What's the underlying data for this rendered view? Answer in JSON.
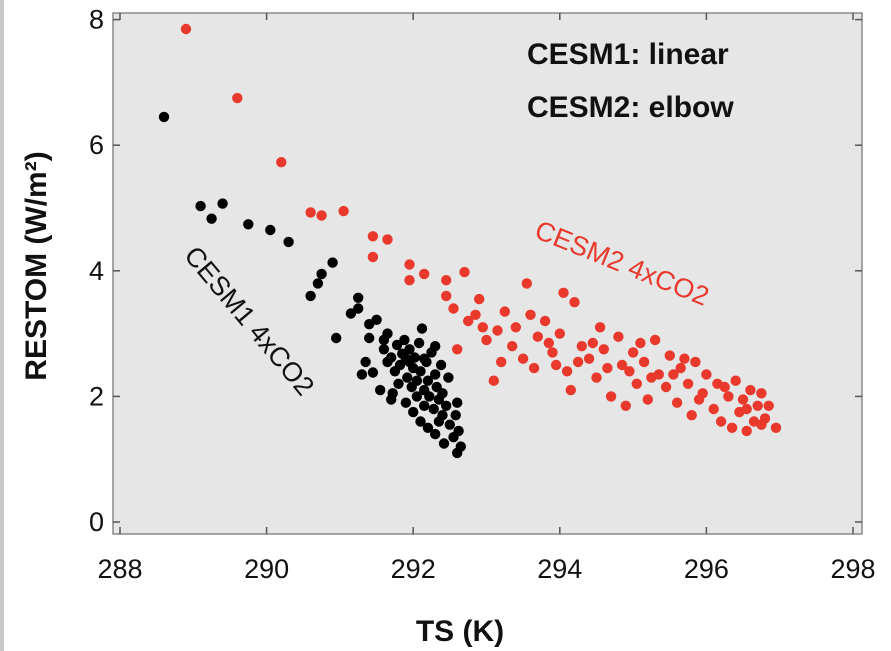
{
  "chart_data": {
    "type": "scatter",
    "title": "",
    "xlabel": "TS (K)",
    "ylabel": "RESTOM (W/m²)",
    "xlim": [
      288,
      298
    ],
    "ylim": [
      0,
      8.2
    ],
    "xticks": [
      288,
      290,
      292,
      294,
      296,
      298
    ],
    "yticks": [
      0,
      2,
      4,
      6,
      8
    ],
    "grid": false,
    "annotations": [
      "CESM1: linear",
      "CESM2: elbow"
    ],
    "series": [
      {
        "name": "CESM1 4xCO2",
        "color": "#000000",
        "points": [
          [
            288.6,
            6.45
          ],
          [
            289.1,
            5.03
          ],
          [
            289.25,
            4.83
          ],
          [
            289.4,
            5.07
          ],
          [
            289.75,
            4.74
          ],
          [
            290.05,
            4.65
          ],
          [
            290.3,
            4.46
          ],
          [
            290.6,
            3.6
          ],
          [
            290.7,
            3.8
          ],
          [
            290.75,
            3.95
          ],
          [
            290.9,
            4.13
          ],
          [
            290.95,
            2.93
          ],
          [
            291.15,
            3.32
          ],
          [
            291.25,
            3.4
          ],
          [
            291.25,
            3.57
          ],
          [
            291.3,
            2.35
          ],
          [
            291.4,
            2.93
          ],
          [
            291.4,
            3.15
          ],
          [
            291.45,
            2.38
          ],
          [
            291.5,
            3.22
          ],
          [
            291.6,
            2.75
          ],
          [
            291.6,
            2.9
          ],
          [
            291.65,
            2.55
          ],
          [
            291.65,
            3.0
          ],
          [
            291.7,
            2.62
          ],
          [
            291.72,
            2.05
          ],
          [
            291.75,
            2.4
          ],
          [
            291.78,
            2.82
          ],
          [
            291.8,
            2.2
          ],
          [
            291.82,
            2.5
          ],
          [
            291.85,
            2.68
          ],
          [
            291.88,
            2.9
          ],
          [
            291.9,
            1.9
          ],
          [
            291.92,
            2.3
          ],
          [
            291.95,
            2.55
          ],
          [
            291.95,
            2.75
          ],
          [
            291.98,
            2.15
          ],
          [
            292.0,
            2.45
          ],
          [
            292.0,
            1.75
          ],
          [
            292.02,
            2.62
          ],
          [
            292.05,
            2.25
          ],
          [
            292.05,
            2.0
          ],
          [
            292.08,
            2.85
          ],
          [
            292.1,
            1.6
          ],
          [
            292.1,
            2.4
          ],
          [
            292.12,
            3.08
          ],
          [
            292.15,
            2.1
          ],
          [
            292.15,
            1.85
          ],
          [
            292.18,
            2.55
          ],
          [
            292.2,
            2.25
          ],
          [
            292.2,
            1.5
          ],
          [
            292.22,
            2.0
          ],
          [
            292.25,
            2.7
          ],
          [
            292.28,
            1.8
          ],
          [
            292.3,
            2.35
          ],
          [
            292.3,
            1.4
          ],
          [
            292.32,
            2.15
          ],
          [
            292.35,
            1.95
          ],
          [
            292.38,
            2.5
          ],
          [
            292.4,
            1.7
          ],
          [
            292.4,
            2.05
          ],
          [
            292.42,
            1.25
          ],
          [
            292.45,
            1.85
          ],
          [
            292.48,
            2.3
          ],
          [
            292.5,
            1.55
          ],
          [
            292.55,
            1.35
          ],
          [
            292.58,
            1.7
          ],
          [
            292.6,
            1.1
          ],
          [
            292.6,
            1.9
          ],
          [
            292.62,
            1.45
          ],
          [
            292.65,
            1.2
          ],
          [
            291.35,
            2.55
          ],
          [
            291.55,
            2.1
          ],
          [
            291.7,
            1.95
          ],
          [
            291.9,
            2.6
          ],
          [
            292.15,
            2.6
          ],
          [
            292.3,
            2.8
          ],
          [
            292.35,
            1.6
          ]
        ]
      },
      {
        "name": "CESM2 4xCO2",
        "color": "#e8392c",
        "points": [
          [
            288.9,
            7.85
          ],
          [
            289.6,
            6.75
          ],
          [
            290.2,
            5.73
          ],
          [
            290.6,
            4.93
          ],
          [
            290.75,
            4.88
          ],
          [
            291.05,
            4.95
          ],
          [
            291.45,
            4.55
          ],
          [
            291.65,
            4.5
          ],
          [
            291.45,
            4.22
          ],
          [
            291.95,
            4.1
          ],
          [
            291.95,
            3.85
          ],
          [
            292.15,
            3.95
          ],
          [
            292.45,
            3.6
          ],
          [
            292.45,
            3.85
          ],
          [
            292.7,
            3.98
          ],
          [
            292.55,
            3.4
          ],
          [
            292.75,
            3.2
          ],
          [
            292.6,
            2.75
          ],
          [
            292.85,
            3.3
          ],
          [
            292.9,
            3.55
          ],
          [
            292.95,
            3.1
          ],
          [
            293.0,
            2.9
          ],
          [
            293.1,
            2.25
          ],
          [
            293.15,
            3.05
          ],
          [
            293.25,
            3.35
          ],
          [
            293.35,
            2.8
          ],
          [
            293.4,
            3.1
          ],
          [
            293.5,
            2.6
          ],
          [
            293.55,
            3.8
          ],
          [
            293.6,
            3.3
          ],
          [
            293.7,
            2.95
          ],
          [
            293.8,
            3.2
          ],
          [
            293.9,
            2.7
          ],
          [
            294.0,
            3.0
          ],
          [
            294.05,
            3.65
          ],
          [
            294.1,
            2.4
          ],
          [
            294.15,
            2.1
          ],
          [
            294.2,
            3.5
          ],
          [
            294.3,
            2.8
          ],
          [
            294.4,
            2.6
          ],
          [
            294.5,
            2.3
          ],
          [
            294.55,
            3.1
          ],
          [
            294.6,
            2.75
          ],
          [
            294.7,
            2.0
          ],
          [
            294.8,
            2.95
          ],
          [
            294.85,
            2.5
          ],
          [
            294.9,
            1.85
          ],
          [
            295.0,
            2.7
          ],
          [
            295.05,
            2.2
          ],
          [
            295.15,
            2.55
          ],
          [
            295.2,
            1.95
          ],
          [
            295.3,
            2.9
          ],
          [
            295.35,
            2.35
          ],
          [
            295.45,
            2.15
          ],
          [
            295.5,
            2.65
          ],
          [
            295.6,
            1.9
          ],
          [
            295.65,
            2.45
          ],
          [
            295.75,
            2.2
          ],
          [
            295.8,
            1.7
          ],
          [
            295.85,
            2.55
          ],
          [
            295.95,
            2.05
          ],
          [
            296.0,
            2.35
          ],
          [
            296.1,
            1.8
          ],
          [
            296.15,
            2.2
          ],
          [
            296.2,
            1.6
          ],
          [
            296.3,
            2.0
          ],
          [
            296.35,
            1.5
          ],
          [
            296.4,
            2.25
          ],
          [
            296.45,
            1.75
          ],
          [
            296.5,
            1.95
          ],
          [
            296.55,
            1.45
          ],
          [
            296.6,
            2.1
          ],
          [
            296.65,
            1.6
          ],
          [
            296.7,
            1.85
          ],
          [
            296.75,
            2.05
          ],
          [
            296.8,
            1.65
          ],
          [
            296.85,
            1.85
          ],
          [
            296.95,
            1.5
          ],
          [
            293.2,
            2.55
          ],
          [
            293.65,
            2.45
          ],
          [
            293.95,
            2.5
          ],
          [
            294.25,
            2.55
          ],
          [
            294.65,
            2.45
          ],
          [
            294.95,
            2.4
          ],
          [
            295.25,
            2.3
          ],
          [
            295.55,
            2.35
          ],
          [
            295.9,
            1.95
          ],
          [
            296.25,
            2.15
          ],
          [
            296.55,
            1.8
          ],
          [
            296.75,
            1.55
          ],
          [
            293.85,
            2.85
          ],
          [
            294.45,
            2.85
          ],
          [
            295.1,
            2.85
          ],
          [
            295.7,
            2.6
          ]
        ]
      }
    ]
  }
}
